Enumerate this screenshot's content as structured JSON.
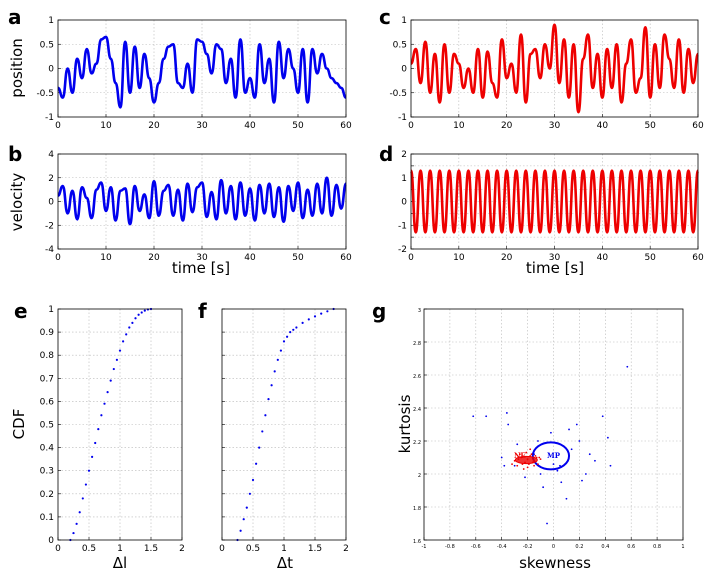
{
  "chart_data": [
    {
      "id": "a",
      "panel_label": "a",
      "type": "line",
      "xlabel": "",
      "ylabel": "position",
      "xlim": [
        0,
        60
      ],
      "ylim": [
        -1,
        1
      ],
      "xticks": [
        0,
        10,
        20,
        30,
        40,
        50,
        60
      ],
      "yticks": [
        -1,
        -0.5,
        0,
        0.5,
        1
      ],
      "yticklabels": [
        "-1",
        "-0.5",
        "0",
        "0.5",
        "1"
      ],
      "series": [
        {
          "name": "position",
          "color": "#0000ee",
          "x": [
            0,
            1,
            2,
            3,
            4,
            5,
            6,
            7,
            8,
            9,
            10,
            11,
            12,
            13,
            14,
            15,
            16,
            17,
            18,
            19,
            20,
            21,
            22,
            23,
            24,
            25,
            26,
            27,
            28,
            29,
            30,
            31,
            32,
            33,
            34,
            35,
            36,
            37,
            38,
            39,
            40,
            41,
            42,
            43,
            44,
            45,
            46,
            47,
            48,
            49,
            50,
            51,
            52,
            53,
            54,
            55,
            56,
            57,
            58,
            59,
            60
          ],
          "y": [
            -0.4,
            -0.6,
            0.0,
            -0.5,
            0.2,
            -0.2,
            0.4,
            -0.1,
            0.1,
            0.6,
            0.65,
            0.2,
            -0.3,
            -0.8,
            0.55,
            -0.5,
            0.45,
            -0.4,
            0.3,
            -0.2,
            -0.7,
            -0.3,
            0.2,
            0.45,
            0.5,
            -0.3,
            -0.4,
            0.1,
            -0.5,
            0.6,
            0.55,
            0.3,
            -0.1,
            0.5,
            0.4,
            -0.3,
            0.2,
            -0.6,
            0.6,
            -0.5,
            -0.2,
            -0.6,
            0.5,
            -0.3,
            0.2,
            -0.7,
            0.55,
            -0.2,
            0.4,
            0.0,
            -0.5,
            0.4,
            -0.7,
            0.4,
            -0.1,
            0.3,
            0.0,
            -0.2,
            -0.3,
            -0.4,
            -0.6
          ]
        }
      ]
    },
    {
      "id": "b",
      "panel_label": "b",
      "type": "line",
      "xlabel": "time [s]",
      "ylabel": "velocity",
      "xlim": [
        0,
        60
      ],
      "ylim": [
        -4,
        4
      ],
      "xticks": [
        0,
        10,
        20,
        30,
        40,
        50,
        60
      ],
      "yticks": [
        -4,
        -2,
        0,
        2,
        4
      ],
      "yticklabels": [
        "-4",
        "-2",
        "0",
        "2",
        "4"
      ],
      "series": [
        {
          "name": "velocity",
          "color": "#0000ee",
          "x": [
            0,
            1,
            2,
            3,
            4,
            5,
            6,
            7,
            8,
            9,
            10,
            11,
            12,
            13,
            14,
            15,
            16,
            17,
            18,
            19,
            20,
            21,
            22,
            23,
            24,
            25,
            26,
            27,
            28,
            29,
            30,
            31,
            32,
            33,
            34,
            35,
            36,
            37,
            38,
            39,
            40,
            41,
            42,
            43,
            44,
            45,
            46,
            47,
            48,
            49,
            50,
            51,
            52,
            53,
            54,
            55,
            56,
            57,
            58,
            59,
            60
          ],
          "y": [
            0.5,
            1.3,
            -1.0,
            0.9,
            -1.5,
            1.2,
            0.3,
            -1.4,
            1.0,
            1.6,
            -0.8,
            1.2,
            -1.6,
            0.9,
            1.1,
            -1.9,
            1.3,
            -0.8,
            0.6,
            -1.4,
            1.7,
            -1.2,
            0.9,
            1.4,
            -1.2,
            1.0,
            -1.6,
            1.5,
            -0.9,
            1.2,
            1.6,
            -1.3,
            0.8,
            -1.5,
            1.8,
            -1.0,
            1.3,
            -1.5,
            1.6,
            -1.2,
            1.1,
            -1.6,
            1.4,
            -1.0,
            1.5,
            -1.3,
            1.2,
            -1.7,
            1.3,
            -0.8,
            1.6,
            -1.4,
            1.0,
            -1.2,
            1.5,
            -1.0,
            2.0,
            -1.2,
            1.4,
            -0.6,
            1.5
          ]
        }
      ]
    },
    {
      "id": "c",
      "panel_label": "c",
      "type": "line",
      "xlabel": "",
      "ylabel": "",
      "xlim": [
        0,
        60
      ],
      "ylim": [
        -1,
        1
      ],
      "xticks": [
        0,
        10,
        20,
        30,
        40,
        50,
        60
      ],
      "yticks": [
        -1,
        -0.5,
        0,
        0.5,
        1
      ],
      "yticklabels": [
        "-1",
        "-0.5",
        "0",
        "0.5",
        "1"
      ],
      "series": [
        {
          "name": "position",
          "color": "#ee0000",
          "x": [
            0,
            1,
            2,
            3,
            4,
            5,
            6,
            7,
            8,
            9,
            10,
            11,
            12,
            13,
            14,
            15,
            16,
            17,
            18,
            19,
            20,
            21,
            22,
            23,
            24,
            25,
            26,
            27,
            28,
            29,
            30,
            31,
            32,
            33,
            34,
            35,
            36,
            37,
            38,
            39,
            40,
            41,
            42,
            43,
            44,
            45,
            46,
            47,
            48,
            49,
            50,
            51,
            52,
            53,
            54,
            55,
            56,
            57,
            58,
            59,
            60
          ],
          "y": [
            0.1,
            0.4,
            -0.3,
            0.55,
            -0.5,
            0.3,
            -0.7,
            0.5,
            -0.5,
            0.3,
            0.1,
            -0.4,
            0.0,
            -0.5,
            0.4,
            -0.6,
            0.35,
            -0.3,
            -0.6,
            0.6,
            -0.2,
            0.1,
            -0.5,
            0.7,
            -0.7,
            0.3,
            0.4,
            -0.2,
            0.5,
            0.0,
            0.9,
            -0.3,
            0.6,
            -0.6,
            0.5,
            -0.9,
            0.2,
            0.7,
            -0.4,
            0.3,
            -0.6,
            0.4,
            -0.4,
            0.5,
            -0.7,
            0.1,
            0.6,
            -0.5,
            -0.2,
            0.85,
            -0.6,
            0.5,
            -0.4,
            0.7,
            0.2,
            -0.4,
            0.6,
            -0.5,
            0.4,
            -0.3,
            0.3
          ]
        }
      ]
    },
    {
      "id": "d",
      "panel_label": "d",
      "type": "line",
      "xlabel": "time [s]",
      "ylabel": "",
      "xlim": [
        0,
        60
      ],
      "ylim": [
        -2,
        2
      ],
      "xticks": [
        0,
        10,
        20,
        30,
        40,
        50,
        60
      ],
      "yticks": [
        -2,
        -1.5,
        -1,
        -0.5,
        0,
        0.5,
        1,
        1.5,
        2
      ],
      "yticklabels": [
        "-2",
        "",
        "-1",
        "",
        "0",
        "",
        "1",
        "",
        "2"
      ],
      "series": [
        {
          "name": "velocity",
          "color": "#ee0000",
          "x": [
            0,
            1,
            2,
            3,
            4,
            5,
            6,
            7,
            8,
            9,
            10,
            11,
            12,
            13,
            14,
            15,
            16,
            17,
            18,
            19,
            20,
            21,
            22,
            23,
            24,
            25,
            26,
            27,
            28,
            29,
            30,
            31,
            32,
            33,
            34,
            35,
            36,
            37,
            38,
            39,
            40,
            41,
            42,
            43,
            44,
            45,
            46,
            47,
            48,
            49,
            50,
            51,
            52,
            53,
            54,
            55,
            56,
            57,
            58,
            59,
            60
          ],
          "y": [
            1.3,
            -1.3,
            1.3,
            -1.3,
            1.3,
            -1.3,
            1.3,
            -1.3,
            1.3,
            -1.3,
            1.3,
            -1.3,
            1.3,
            -1.3,
            1.3,
            -1.3,
            1.3,
            -1.3,
            1.3,
            -1.3,
            1.3,
            -1.3,
            1.3,
            -1.3,
            1.3,
            -1.3,
            1.3,
            -1.3,
            1.3,
            -1.3,
            1.3,
            -1.3,
            1.3,
            -1.3,
            1.3,
            -1.3,
            1.3,
            -1.3,
            1.3,
            -1.3,
            1.3,
            -1.3,
            1.3,
            -1.3,
            1.3,
            -1.3,
            1.3,
            -1.3,
            1.3,
            -1.3,
            1.3,
            -1.3,
            1.3,
            -1.3,
            1.3,
            -1.3,
            1.3,
            -1.3,
            1.3,
            -1.3,
            1.3
          ]
        }
      ]
    },
    {
      "id": "e",
      "panel_label": "e",
      "type": "scatter",
      "xlabel": "Δl",
      "ylabel": "CDF",
      "xlim": [
        0,
        2
      ],
      "ylim": [
        0,
        1
      ],
      "xticks": [
        0,
        0.5,
        1,
        1.5,
        2
      ],
      "xticklabels": [
        "0",
        "0.5",
        "1",
        "1.5",
        "2"
      ],
      "yticks": [
        0,
        0.1,
        0.2,
        0.3,
        0.4,
        0.5,
        0.6,
        0.7,
        0.8,
        0.9,
        1
      ],
      "yticklabels": [
        "0",
        "0.1",
        "0.2",
        "0.3",
        "0.4",
        "0.5",
        "0.6",
        "0.7",
        "0.8",
        "0.9",
        "1"
      ],
      "series": [
        {
          "name": "CDF",
          "color": "#0000ee",
          "x": [
            0.2,
            0.25,
            0.3,
            0.35,
            0.4,
            0.45,
            0.5,
            0.55,
            0.6,
            0.65,
            0.7,
            0.75,
            0.8,
            0.85,
            0.9,
            0.95,
            1.0,
            1.05,
            1.1,
            1.15,
            1.2,
            1.25,
            1.3,
            1.35,
            1.4,
            1.45,
            1.5
          ],
          "y": [
            0.0,
            0.03,
            0.07,
            0.12,
            0.18,
            0.24,
            0.3,
            0.36,
            0.42,
            0.48,
            0.54,
            0.59,
            0.64,
            0.69,
            0.74,
            0.78,
            0.82,
            0.86,
            0.89,
            0.92,
            0.94,
            0.96,
            0.975,
            0.985,
            0.993,
            0.998,
            1.0
          ]
        }
      ]
    },
    {
      "id": "f",
      "panel_label": "f",
      "type": "scatter",
      "xlabel": "Δt",
      "ylabel": "",
      "xlim": [
        0,
        2
      ],
      "ylim": [
        0,
        1
      ],
      "xticks": [
        0,
        0.5,
        1,
        1.5,
        2
      ],
      "xticklabels": [
        "0",
        "0.5",
        "1",
        "1.5",
        "2"
      ],
      "yticks": [
        0,
        0.1,
        0.2,
        0.3,
        0.4,
        0.5,
        0.6,
        0.7,
        0.8,
        0.9,
        1
      ],
      "yticklabels": [],
      "series": [
        {
          "name": "CDF",
          "color": "#0000ee",
          "x": [
            0.25,
            0.3,
            0.35,
            0.4,
            0.45,
            0.5,
            0.55,
            0.6,
            0.65,
            0.7,
            0.75,
            0.8,
            0.85,
            0.9,
            0.95,
            1.0,
            1.05,
            1.1,
            1.15,
            1.2,
            1.3,
            1.4,
            1.5,
            1.6,
            1.7,
            1.8
          ],
          "y": [
            0.0,
            0.04,
            0.09,
            0.14,
            0.2,
            0.26,
            0.33,
            0.4,
            0.47,
            0.54,
            0.61,
            0.67,
            0.73,
            0.78,
            0.82,
            0.86,
            0.88,
            0.9,
            0.91,
            0.92,
            0.94,
            0.955,
            0.968,
            0.98,
            0.99,
            1.0
          ]
        }
      ]
    },
    {
      "id": "g",
      "panel_label": "g",
      "type": "scatter",
      "xlabel": "skewness",
      "ylabel": "kurtosis",
      "xlim": [
        -1,
        1
      ],
      "ylim": [
        1.6,
        3
      ],
      "xticks": [
        -1,
        -0.8,
        -0.6,
        -0.4,
        -0.2,
        0,
        0.2,
        0.4,
        0.6,
        0.8,
        1
      ],
      "xticklabels": [
        "-1",
        "-0.8",
        "-0.6",
        "-0.4",
        "-0.2",
        "0",
        "0.2",
        "0.4",
        "0.6",
        "0.8",
        "1"
      ],
      "yticks": [
        1.6,
        1.8,
        2,
        2.2,
        2.4,
        2.6,
        2.8,
        3
      ],
      "yticklabels": [
        "1.6",
        "1.8",
        "2",
        "2.2",
        "2.4",
        "2.6",
        "2.8",
        "3"
      ],
      "series": [
        {
          "name": "MP",
          "color": "#0000ee",
          "x": [
            0.57,
            -0.62,
            -0.36,
            -0.52,
            0.42,
            0.18,
            -0.1,
            -0.22,
            0.05,
            0.14,
            0.32,
            0.25,
            -0.05,
            -0.3,
            0.1,
            0.2,
            0.03,
            -0.15,
            0.38,
            0.44,
            -0.4,
            -0.28,
            0.06,
            -0.02,
            0.22,
            -0.35,
            0.12,
            -0.08,
            0.0,
            -0.12,
            -0.38,
            0.28
          ],
          "y": [
            2.65,
            2.35,
            2.37,
            2.35,
            2.22,
            2.3,
            2.0,
            1.98,
            2.05,
            2.15,
            2.08,
            2.0,
            1.7,
            2.05,
            1.85,
            2.2,
            2.02,
            2.12,
            2.35,
            2.05,
            2.1,
            2.18,
            1.95,
            2.25,
            1.96,
            2.3,
            2.27,
            1.92,
            2.06,
            2.2,
            2.05,
            2.12
          ]
        },
        {
          "name": "NE",
          "color": "#ee0000",
          "x": [
            -0.3,
            -0.25,
            -0.22,
            -0.2,
            -0.18,
            -0.15,
            -0.13,
            -0.1,
            -0.28,
            -0.24,
            -0.19,
            -0.16,
            -0.12,
            -0.26,
            -0.21,
            -0.17,
            -0.14,
            -0.23,
            -0.2,
            -0.11,
            -0.32,
            -0.27,
            -0.18,
            -0.15
          ],
          "y": [
            2.08,
            2.1,
            2.07,
            2.09,
            2.11,
            2.08,
            2.1,
            2.09,
            2.05,
            2.06,
            2.06,
            2.07,
            2.06,
            2.12,
            2.13,
            2.12,
            2.11,
            2.03,
            2.04,
            2.1,
            2.06,
            2.09,
            2.15,
            2.05
          ]
        }
      ],
      "annotations": [
        {
          "text": "NE",
          "x": -0.26,
          "y": 2.11,
          "color": "#ee0000"
        },
        {
          "text": "MP",
          "x": 0.0,
          "y": 2.11,
          "color": "#0000ee"
        }
      ],
      "ellipses": [
        {
          "name": "MP",
          "color": "#0000ee",
          "cx": -0.02,
          "cy": 2.11,
          "rx": 0.14,
          "ry": 0.082
        },
        {
          "name": "NE",
          "color": "#ee0000",
          "cx": -0.21,
          "cy": 2.085,
          "rx": 0.085,
          "ry": 0.022
        }
      ]
    }
  ]
}
